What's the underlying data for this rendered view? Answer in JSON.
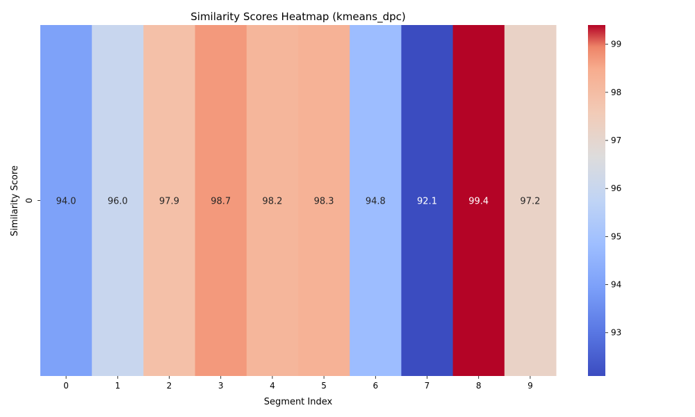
{
  "chart_data": {
    "type": "heatmap",
    "title": "Similarity Scores Heatmap (kmeans_dpc)",
    "xlabel": "Segment Index",
    "ylabel": "Similarity Score",
    "x_categories": [
      "0",
      "1",
      "2",
      "3",
      "4",
      "5",
      "6",
      "7",
      "8",
      "9"
    ],
    "y_categories": [
      "0"
    ],
    "values": [
      [
        94.0,
        96.0,
        97.9,
        98.7,
        98.2,
        98.3,
        94.8,
        92.1,
        99.4,
        97.2
      ]
    ],
    "value_labels": [
      "94.0",
      "96.0",
      "97.9",
      "98.7",
      "98.2",
      "98.3",
      "94.8",
      "92.1",
      "99.4",
      "97.2"
    ],
    "colormap": "coolwarm",
    "colorbar": {
      "range": [
        92.1,
        99.4
      ],
      "ticks": [
        93,
        94,
        95,
        96,
        97,
        98,
        99
      ]
    }
  }
}
